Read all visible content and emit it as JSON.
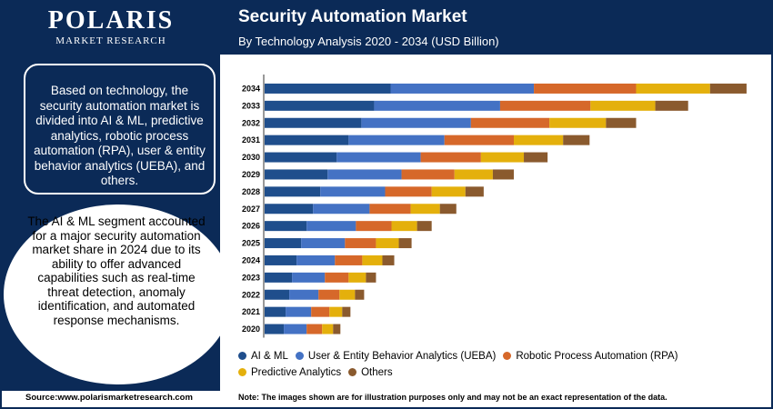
{
  "brand": {
    "name": "POLARIS",
    "tagline": "MARKET RESEARCH"
  },
  "sidebar": {
    "summary_text": "Based on technology, the security automation market is divided into AI & ML, predictive analytics, robotic process automation (RPA), user & entity behavior analytics (UEBA), and others.",
    "highlight_text": "The AI & ML segment accounted for a major security automation market share in 2024 due to its ability to offer advanced capabilities such as real-time threat detection, anomaly identification, and automated response mechanisms."
  },
  "footer": {
    "source": "Source:www.polarismarketresearch.com",
    "note": "Note: The images shown are for illustration purposes only and may not be an exact representation of the data."
  },
  "colors": {
    "navy": "#0b2a57",
    "ai_ml": "#1f4e8c",
    "ueba": "#4472c4",
    "rpa": "#d6682a",
    "predictive": "#e4b00c",
    "others": "#8a5a2e"
  },
  "chart_data": {
    "type": "bar",
    "orientation": "horizontal",
    "stacked": true,
    "title": "Security Automation Market",
    "subtitle": "By Technology Analysis 2020 - 2034 (USD Billion)",
    "categories": [
      "2034",
      "2033",
      "2032",
      "2031",
      "2030",
      "2029",
      "2028",
      "2027",
      "2026",
      "2025",
      "2024",
      "2023",
      "2022",
      "2021",
      "2020"
    ],
    "series": [
      {
        "name": "AI & ML",
        "color": "#1f4e8c",
        "values": [
          13.8,
          12.0,
          10.6,
          9.2,
          7.9,
          6.9,
          6.1,
          5.3,
          4.6,
          4.0,
          3.5,
          3.0,
          2.7,
          2.3,
          2.1
        ]
      },
      {
        "name": "User & Entity Behavior Analytics (UEBA)",
        "color": "#4472c4",
        "values": [
          15.7,
          13.8,
          12.0,
          10.5,
          9.2,
          8.1,
          7.1,
          6.2,
          5.4,
          4.8,
          4.2,
          3.6,
          3.2,
          2.8,
          2.5
        ]
      },
      {
        "name": "Robotic Process Automation (RPA)",
        "color": "#d6682a",
        "values": [
          11.2,
          9.9,
          8.6,
          7.6,
          6.6,
          5.8,
          5.1,
          4.5,
          3.9,
          3.4,
          3.0,
          2.6,
          2.3,
          2.0,
          1.7
        ]
      },
      {
        "name": "Predictive Analytics",
        "color": "#e4b00c",
        "values": [
          8.1,
          7.1,
          6.2,
          5.4,
          4.7,
          4.2,
          3.7,
          3.2,
          2.8,
          2.5,
          2.2,
          1.9,
          1.7,
          1.4,
          1.2
        ]
      },
      {
        "name": "Others",
        "color": "#8a5a2e",
        "values": [
          4.0,
          3.6,
          3.3,
          2.9,
          2.6,
          2.3,
          2.0,
          1.8,
          1.6,
          1.4,
          1.3,
          1.1,
          1.0,
          0.9,
          0.8
        ]
      }
    ],
    "xlim": [
      0,
      55
    ],
    "grid": false,
    "legend_position": "bottom"
  }
}
